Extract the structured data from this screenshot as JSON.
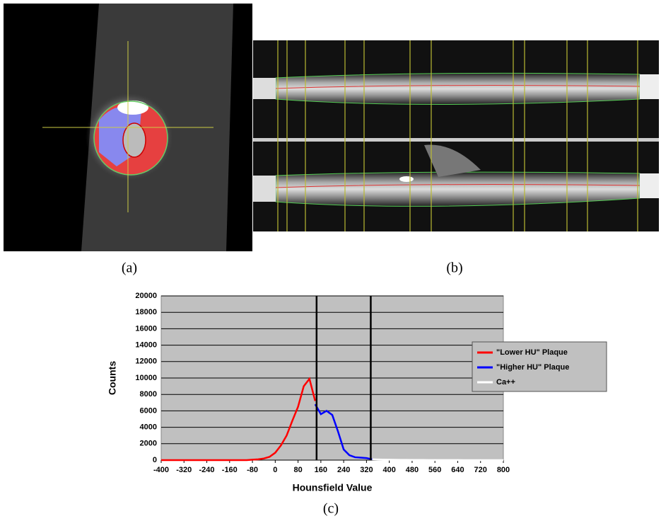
{
  "captions": {
    "a": "(a)",
    "b": "(b)",
    "c": "(c)"
  },
  "chart_data": {
    "type": "line",
    "xlabel": "Hounsfield Value",
    "ylabel": "Counts",
    "x": [
      -400,
      -380,
      -360,
      -340,
      -320,
      -300,
      -280,
      -260,
      -240,
      -220,
      -200,
      -180,
      -160,
      -140,
      -120,
      -100,
      -80,
      -60,
      -40,
      -20,
      0,
      20,
      40,
      60,
      80,
      100,
      120,
      140,
      160,
      180,
      200,
      220,
      240,
      260,
      280,
      300,
      320,
      340,
      360,
      380,
      400,
      420,
      440,
      460,
      480,
      500,
      520,
      540,
      560,
      580,
      600,
      620,
      640,
      660,
      680,
      700,
      720,
      740,
      760,
      780,
      800
    ],
    "series": [
      {
        "name": "\"Lower HU\" Plaque",
        "color": "#ff0000",
        "values": [
          0,
          0,
          0,
          0,
          0,
          0,
          0,
          0,
          0,
          0,
          0,
          0,
          0,
          0,
          0,
          0,
          50,
          100,
          200,
          400,
          900,
          1800,
          3000,
          4800,
          6500,
          9000,
          9900,
          7200,
          null,
          null,
          null,
          null,
          null,
          null,
          null,
          null,
          null,
          null,
          null,
          null,
          null,
          null,
          null,
          null,
          null,
          null,
          null,
          null,
          null,
          null,
          null,
          null,
          null,
          null,
          null,
          null,
          null,
          null,
          null,
          null,
          null
        ]
      },
      {
        "name": "\"Higher HU\" Plaque",
        "color": "#0000ff",
        "values": [
          null,
          null,
          null,
          null,
          null,
          null,
          null,
          null,
          null,
          null,
          null,
          null,
          null,
          null,
          null,
          null,
          null,
          null,
          null,
          null,
          null,
          null,
          null,
          null,
          null,
          null,
          null,
          6800,
          5600,
          6000,
          5500,
          3500,
          1300,
          600,
          350,
          300,
          250,
          100,
          null,
          null,
          null,
          null,
          null,
          null,
          null,
          null,
          null,
          null,
          null,
          null,
          null,
          null,
          null,
          null,
          null,
          null,
          null,
          null,
          null,
          null,
          null
        ]
      },
      {
        "name": "Ca++",
        "color": "#ffffff",
        "values": [
          null,
          null,
          null,
          null,
          null,
          null,
          null,
          null,
          null,
          null,
          null,
          null,
          null,
          null,
          null,
          null,
          null,
          null,
          null,
          null,
          null,
          null,
          null,
          null,
          null,
          null,
          null,
          null,
          null,
          null,
          null,
          null,
          null,
          null,
          null,
          null,
          null,
          100,
          80,
          60,
          50,
          40,
          30,
          30,
          20,
          20,
          20,
          10,
          10,
          10,
          10,
          10,
          10,
          0,
          0,
          0,
          0,
          0,
          0,
          0,
          0
        ]
      }
    ],
    "vlines": [
      145,
      335
    ],
    "xlim": [
      -400,
      800
    ],
    "xticks": [
      -400,
      -320,
      -240,
      -160,
      -80,
      0,
      80,
      160,
      240,
      320,
      400,
      480,
      560,
      640,
      720,
      800
    ],
    "ylim": [
      0,
      20000
    ],
    "yticks": [
      0,
      2000,
      4000,
      6000,
      8000,
      10000,
      12000,
      14000,
      16000,
      18000,
      20000
    ],
    "grid": true,
    "background": "#c0c0c0"
  }
}
